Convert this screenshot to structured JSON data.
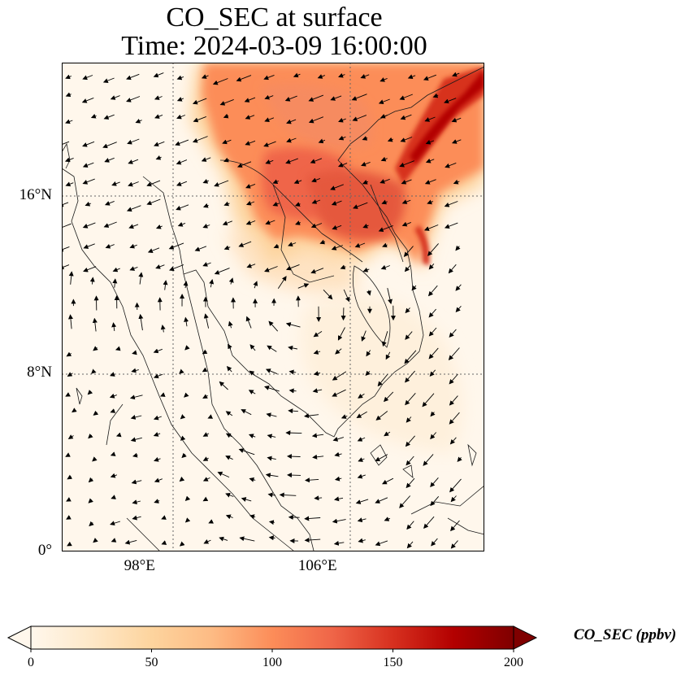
{
  "figure": {
    "title_line_1": "CO_SEC at surface",
    "title_line_2": "Time: 2024-03-09 16:00:00"
  },
  "map": {
    "lon_range": [
      94.5,
      113.5
    ],
    "lat_range": [
      0,
      22
    ],
    "gridline_style": "dotted grey",
    "lat_labels": [
      {
        "value": 16,
        "label": "16°N"
      },
      {
        "value": 8,
        "label": "8°N"
      },
      {
        "value": 0,
        "label": "0°"
      }
    ],
    "lon_labels": [
      {
        "value": 98,
        "label": "98°E"
      },
      {
        "value": 106,
        "label": "106°E"
      }
    ],
    "field": "CO_SEC concentration with surface wind vectors",
    "high_concentration_region": "mainland Southeast Asia north of ~13°N, maximum along northern Vietnam coast"
  },
  "colorbar": {
    "colormap": "OrRd",
    "min": 0,
    "max": 200,
    "extend": "both",
    "ticks": [
      "0",
      "50",
      "100",
      "150",
      "200"
    ],
    "label": "CO_SEC (ppbv)",
    "colors": [
      "#fff7ec",
      "#fee8c8",
      "#fdd49e",
      "#fdbb84",
      "#fc8d59",
      "#ef6548",
      "#d7301f",
      "#b30000",
      "#7f0000"
    ]
  }
}
